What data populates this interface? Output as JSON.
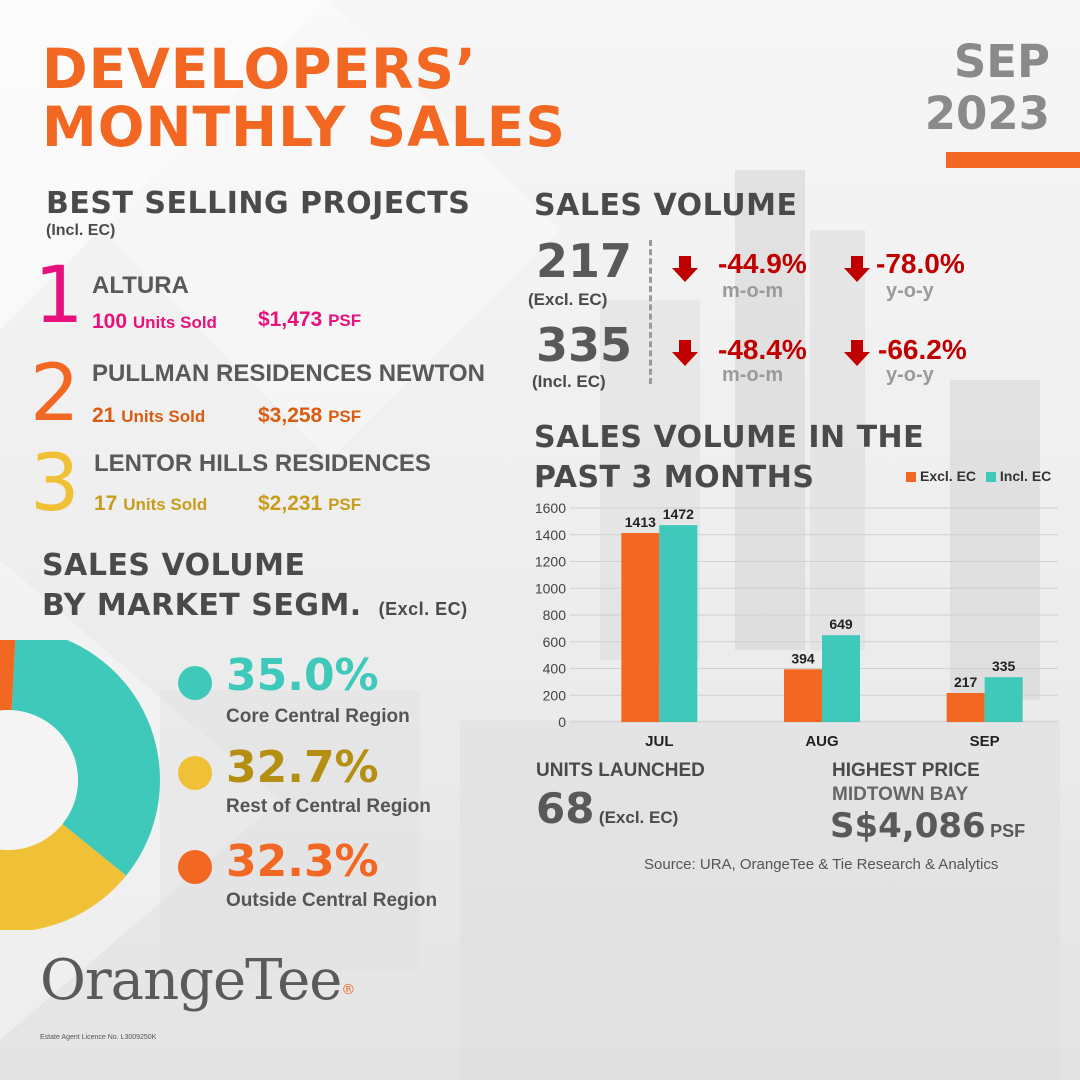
{
  "header": {
    "title_line1": "DEVELOPERS’",
    "title_line2": "MONTHLY SALES",
    "month": "SEP",
    "year": "2023"
  },
  "best_selling": {
    "heading": "BEST SELLING PROJECTS",
    "subheading": "(Incl. EC)",
    "items": [
      {
        "rank": "1",
        "name": "ALTURA",
        "units": "100",
        "units_label": "Units Sold",
        "psf": "$1,473",
        "psf_label": "PSF",
        "color": "#e6117d"
      },
      {
        "rank": "2",
        "name": "PULLMAN RESIDENCES NEWTON",
        "units": "21",
        "units_label": "Units Sold",
        "psf": "$3,258",
        "psf_label": "PSF",
        "color": "#d95c12"
      },
      {
        "rank": "3",
        "name": "LENTOR HILLS RESIDENCES",
        "units": "17",
        "units_label": "Units Sold",
        "psf": "$2,231",
        "psf_label": "PSF",
        "color": "#c99d1c"
      }
    ]
  },
  "sales_volume": {
    "heading": "SALES VOLUME",
    "rows": [
      {
        "value": "217",
        "label": "(Excl. EC)",
        "mom": "-44.9%",
        "mom_label": "m-o-m",
        "yoy": "-78.0%",
        "yoy_label": "y-o-y"
      },
      {
        "value": "335",
        "label": "(Incl. EC)",
        "mom": "-48.4%",
        "mom_label": "m-o-m",
        "yoy": "-66.2%",
        "yoy_label": "y-o-y"
      }
    ]
  },
  "segments": {
    "heading_line1": "SALES VOLUME",
    "heading_line2": "BY MARKET SEGM.",
    "heading_note": "(Excl. EC)",
    "items": [
      {
        "pct": "35.0%",
        "label": "Core Central Region",
        "value": 35.0,
        "color": "#3ec9bb",
        "text_color": "#3ec9bb"
      },
      {
        "pct": "32.7%",
        "label": "Rest of Central Region",
        "value": 32.7,
        "color": "#f0c136",
        "text_color": "#b58f12"
      },
      {
        "pct": "32.3%",
        "label": "Outside Central Region",
        "value": 32.3,
        "color": "#f26722",
        "text_color": "#f26722"
      }
    ]
  },
  "past3": {
    "heading_line1": "SALES VOLUME IN THE",
    "heading_line2": "PAST 3 MONTHS"
  },
  "chart_data": {
    "type": "bar",
    "categories": [
      "JUL",
      "AUG",
      "SEP"
    ],
    "series": [
      {
        "name": "Excl. EC",
        "values": [
          1413,
          394,
          217
        ],
        "color": "#f26722"
      },
      {
        "name": "Incl. EC",
        "values": [
          1472,
          649,
          335
        ],
        "color": "#3ec9bb"
      }
    ],
    "yticks": [
      "0",
      "200",
      "400",
      "600",
      "800",
      "1000",
      "1200",
      "1400",
      "1600"
    ],
    "ylim": [
      0,
      1600
    ],
    "grid": true,
    "legend": "top-right"
  },
  "units_launched": {
    "heading": "UNITS LAUNCHED",
    "value": "68",
    "note": "(Excl. EC)"
  },
  "highest_price": {
    "heading": "HIGHEST PRICE",
    "project": "MIDTOWN BAY",
    "value": "S$4,086",
    "unit": "PSF"
  },
  "source": "Source: URA, OrangeTee & Tie Research & Analytics",
  "logo": {
    "name": "OrangeTee",
    "licence": "Estate Agent Licence No. L3009250K"
  },
  "colors": {
    "accent": "#f26722",
    "teal": "#3ec9bb",
    "yellow": "#f0c136",
    "negative": "#c00000"
  }
}
